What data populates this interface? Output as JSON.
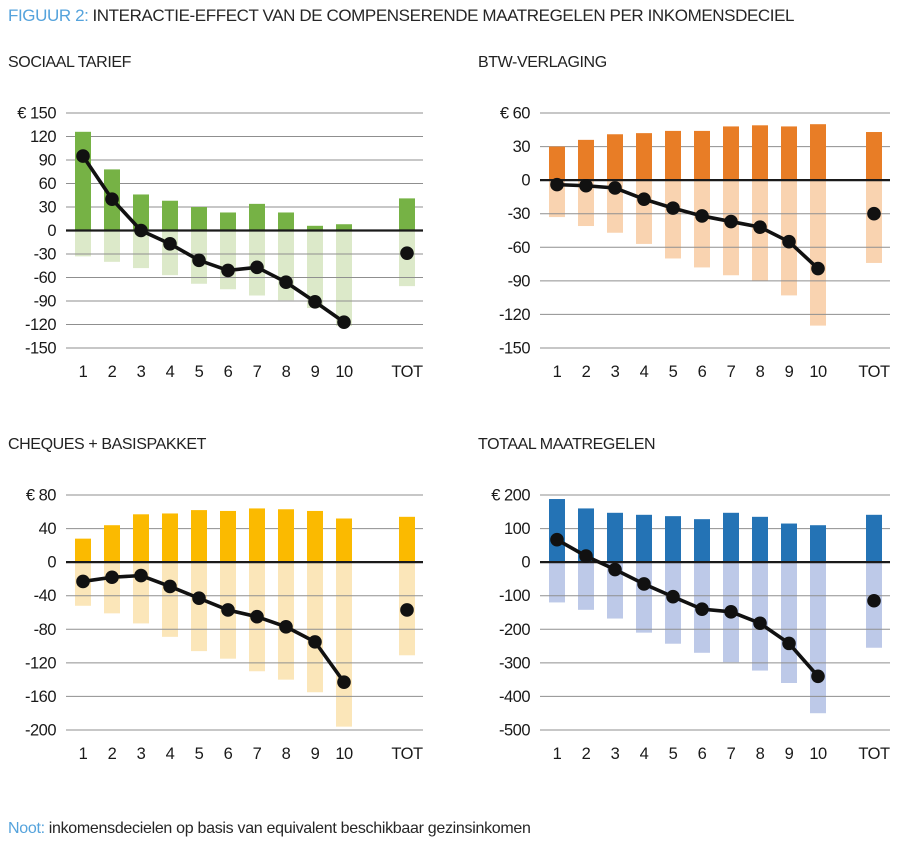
{
  "title": {
    "prefix": "FIGUUR 2:",
    "text": "INTERACTIE-EFFECT VAN DE COMPENSERENDE MAATREGELEN PER INKOMENSDECIEL"
  },
  "note": {
    "prefix": "Noot:",
    "text": "inkomensdecielen op basis van equivalent beschikbaar gezinsinkomen"
  },
  "colors": {
    "accent": "#55A3DC",
    "grid": "#8F8F8F",
    "zero_line": "#1A1A1A",
    "line_dots": "#111111"
  },
  "chart_data": [
    {
      "type": "bar",
      "title": "SOCIAAL TARIEF",
      "categories": [
        "1",
        "2",
        "3",
        "4",
        "5",
        "6",
        "7",
        "8",
        "9",
        "10",
        "TOT"
      ],
      "ylim": [
        -150,
        150
      ],
      "ytick_values": [
        150,
        120,
        90,
        60,
        30,
        0,
        -30,
        -60,
        -90,
        -120,
        -150
      ],
      "ytick_labels": [
        "€ 150",
        "120",
        "90",
        "60",
        "30",
        "0",
        "-30",
        "-60",
        "-90",
        "-120",
        "-150"
      ],
      "grid": true,
      "legend": false,
      "series": [
        {
          "name": "bars-positive",
          "type": "bar",
          "color": "#76B245",
          "values": [
            126,
            78,
            46,
            38,
            30,
            23,
            34,
            23,
            6,
            8,
            41
          ]
        },
        {
          "name": "bars-negative",
          "type": "bar",
          "color": "#DCE9C9",
          "values": [
            -33,
            -40,
            -48,
            -57,
            -68,
            -75,
            -83,
            -89,
            -99,
            -122,
            -71
          ]
        },
        {
          "name": "net-effect",
          "type": "line",
          "color": "#111111",
          "values": [
            95,
            40,
            0,
            -17,
            -38,
            -51,
            -47,
            -66,
            -91,
            -117,
            -29
          ]
        }
      ]
    },
    {
      "type": "bar",
      "title": "BTW-VERLAGING",
      "categories": [
        "1",
        "2",
        "3",
        "4",
        "5",
        "6",
        "7",
        "8",
        "9",
        "10",
        "TOT"
      ],
      "ylim": [
        -150,
        60
      ],
      "ytick_values": [
        60,
        30,
        0,
        -30,
        -60,
        -90,
        -120,
        -150
      ],
      "ytick_labels": [
        "€ 60",
        "30",
        "0",
        "-30",
        "-60",
        "-90",
        "-120",
        "-150"
      ],
      "grid": true,
      "legend": false,
      "series": [
        {
          "name": "bars-positive",
          "type": "bar",
          "color": "#E87D26",
          "values": [
            30,
            36,
            41,
            42,
            44,
            44,
            48,
            49,
            48,
            50,
            43
          ]
        },
        {
          "name": "bars-negative",
          "type": "bar",
          "color": "#F9D3B0",
          "values": [
            -33,
            -41,
            -47,
            -57,
            -70,
            -78,
            -85,
            -90,
            -103,
            -130,
            -74
          ]
        },
        {
          "name": "net-effect",
          "type": "line",
          "color": "#111111",
          "values": [
            -4,
            -5,
            -7,
            -17,
            -25,
            -32,
            -37,
            -42,
            -55,
            -79,
            -30
          ]
        }
      ]
    },
    {
      "type": "bar",
      "title": "CHEQUES + BASISPAKKET",
      "categories": [
        "1",
        "2",
        "3",
        "4",
        "5",
        "6",
        "7",
        "8",
        "9",
        "10",
        "TOT"
      ],
      "ylim": [
        -200,
        80
      ],
      "ytick_values": [
        80,
        40,
        0,
        -40,
        -80,
        -120,
        -160,
        -200
      ],
      "ytick_labels": [
        "€ 80",
        "40",
        "0",
        "-40",
        "-80",
        "-120",
        "-160",
        "-200"
      ],
      "grid": true,
      "legend": false,
      "series": [
        {
          "name": "bars-positive",
          "type": "bar",
          "color": "#FBBA00",
          "values": [
            28,
            44,
            57,
            58,
            62,
            61,
            64,
            63,
            61,
            52,
            54
          ]
        },
        {
          "name": "bars-negative",
          "type": "bar",
          "color": "#FBE6B9",
          "values": [
            -52,
            -61,
            -73,
            -89,
            -106,
            -115,
            -130,
            -140,
            -155,
            -196,
            -111
          ]
        },
        {
          "name": "net-effect",
          "type": "line",
          "color": "#111111",
          "values": [
            -23,
            -18,
            -16,
            -29,
            -43,
            -57,
            -65,
            -77,
            -95,
            -143,
            -57
          ]
        }
      ]
    },
    {
      "type": "bar",
      "title": "TOTAAL MAATREGELEN",
      "categories": [
        "1",
        "2",
        "3",
        "4",
        "5",
        "6",
        "7",
        "8",
        "9",
        "10",
        "TOT"
      ],
      "ylim": [
        -500,
        200
      ],
      "ytick_values": [
        200,
        100,
        0,
        -100,
        -200,
        -300,
        -400,
        -500
      ],
      "ytick_labels": [
        "€ 200",
        "100",
        "0",
        "-100",
        "-200",
        "-300",
        "-400",
        "-500"
      ],
      "grid": true,
      "legend": false,
      "series": [
        {
          "name": "bars-positive",
          "type": "bar",
          "color": "#2473B5",
          "values": [
            188,
            160,
            147,
            141,
            137,
            128,
            147,
            135,
            115,
            110,
            141
          ]
        },
        {
          "name": "bars-negative",
          "type": "bar",
          "color": "#BDC9E8",
          "values": [
            -120,
            -142,
            -168,
            -210,
            -243,
            -270,
            -298,
            -323,
            -360,
            -450,
            -255
          ]
        },
        {
          "name": "net-effect",
          "type": "line",
          "color": "#111111",
          "values": [
            67,
            18,
            -22,
            -65,
            -103,
            -140,
            -148,
            -182,
            -242,
            -340,
            -115
          ]
        }
      ]
    }
  ]
}
